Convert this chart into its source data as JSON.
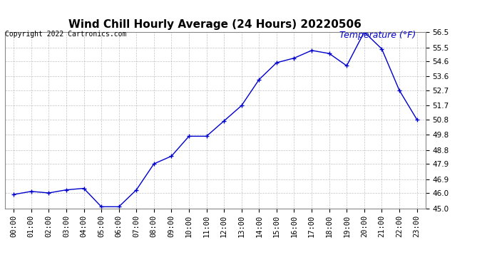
{
  "title": "Wind Chill Hourly Average (24 Hours) 20220506",
  "copyright_text": "Copyright 2022 Cartronics.com",
  "legend_label": "Temperature (°F)",
  "hours": [
    "00:00",
    "01:00",
    "02:00",
    "03:00",
    "04:00",
    "05:00",
    "06:00",
    "07:00",
    "08:00",
    "09:00",
    "10:00",
    "11:00",
    "12:00",
    "13:00",
    "14:00",
    "15:00",
    "16:00",
    "17:00",
    "18:00",
    "19:00",
    "20:00",
    "21:00",
    "22:00",
    "23:00"
  ],
  "values": [
    45.9,
    46.1,
    46.0,
    46.2,
    46.3,
    45.1,
    45.1,
    46.2,
    47.9,
    48.4,
    49.7,
    49.7,
    50.7,
    51.7,
    53.4,
    54.5,
    54.8,
    55.3,
    55.1,
    54.3,
    56.5,
    55.4,
    52.7,
    50.8
  ],
  "line_color": "#0000CC",
  "marker": "+",
  "bg_color": "#FFFFFF",
  "plot_bg_color": "#FFFFFF",
  "grid_color": "#AAAAAA",
  "ylim_min": 45.0,
  "ylim_max": 56.5,
  "yticks": [
    45.0,
    46.0,
    46.9,
    47.9,
    48.8,
    49.8,
    50.8,
    51.7,
    52.7,
    53.6,
    54.6,
    55.5,
    56.5
  ],
  "title_fontsize": 11,
  "copyright_fontsize": 7,
  "legend_fontsize": 9,
  "tick_fontsize": 7.5
}
